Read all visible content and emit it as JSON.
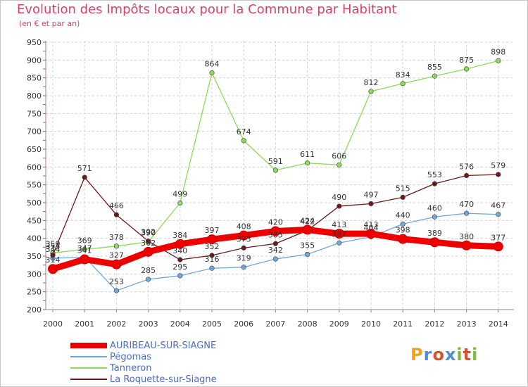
{
  "title": "Evolution des Impôts locaux pour la Commune par Habitant",
  "subtitle": "(en € et par an)",
  "logo": {
    "text": "Proxiti",
    "colors": [
      "#f0a020",
      "#4a8fd0",
      "#e05028",
      "#4a8fd0",
      "#7cba3c",
      "#e05028",
      "#7cba3c"
    ]
  },
  "chart_data": {
    "type": "line",
    "title": "Evolution des Impôts locaux pour la Commune par Habitant",
    "subtitle": "(en € et par an)",
    "categories": [
      "2000",
      "2001",
      "2002",
      "2003",
      "2004",
      "2005",
      "2006",
      "2007",
      "2008",
      "2009",
      "2010",
      "2011",
      "2012",
      "2013",
      "2014"
    ],
    "ylim": [
      200,
      950
    ],
    "yticks": [
      200,
      250,
      300,
      350,
      400,
      450,
      500,
      550,
      600,
      650,
      700,
      750,
      800,
      850,
      900,
      950
    ],
    "grid": true,
    "series": [
      {
        "name": "AURIBEAU-SUR-SIAGNE",
        "color": "#ee0000",
        "emphasis": true,
        "values": [
          314,
          341,
          327,
          362,
          384,
          397,
          408,
          420,
          424,
          413,
          413,
          398,
          389,
          380,
          377
        ],
        "labels": [
          "314",
          "341",
          "327",
          "362",
          "384",
          "397",
          "408",
          "420",
          "424",
          "413",
          "413",
          "398",
          "389",
          "380",
          "377"
        ]
      },
      {
        "name": "Pégomas",
        "color": "#6fa8dc",
        "emphasis": false,
        "values": [
          344,
          347,
          253,
          285,
          295,
          316,
          319,
          342,
          355,
          387,
          404,
          440,
          460,
          470,
          467
        ],
        "labels": [
          "344",
          "347",
          "253",
          "285",
          "295",
          "316",
          "319",
          "342",
          "355",
          "387",
          "404",
          "440",
          "460",
          "470",
          "467"
        ]
      },
      {
        "name": "Tanneron",
        "color": "#8ed85b",
        "emphasis": false,
        "values": [
          359,
          369,
          378,
          390,
          499,
          864,
          674,
          591,
          611,
          606,
          812,
          834,
          855,
          875,
          898
        ],
        "labels": [
          "359",
          "369",
          "378",
          "390",
          "499",
          "864",
          "674",
          "591",
          "611",
          "606",
          "812",
          "834",
          "855",
          "875",
          "898"
        ]
      },
      {
        "name": "La Roquette-sur-Siagne",
        "color": "#6b1a1a",
        "emphasis": false,
        "values": [
          353,
          571,
          466,
          392,
          340,
          352,
          373,
          385,
          422,
          490,
          497,
          515,
          553,
          576,
          579
        ],
        "labels": [
          "353",
          "571",
          "466",
          "392",
          "340",
          "352",
          "373",
          "385",
          "422",
          "490",
          "497",
          "515",
          "553",
          "576",
          "579"
        ]
      }
    ],
    "legend": [
      "AURIBEAU-SUR-SIAGNE",
      "Pégomas",
      "Tanneron",
      "La Roquette-sur-Siagne"
    ],
    "legend_position": "bottom-left"
  }
}
